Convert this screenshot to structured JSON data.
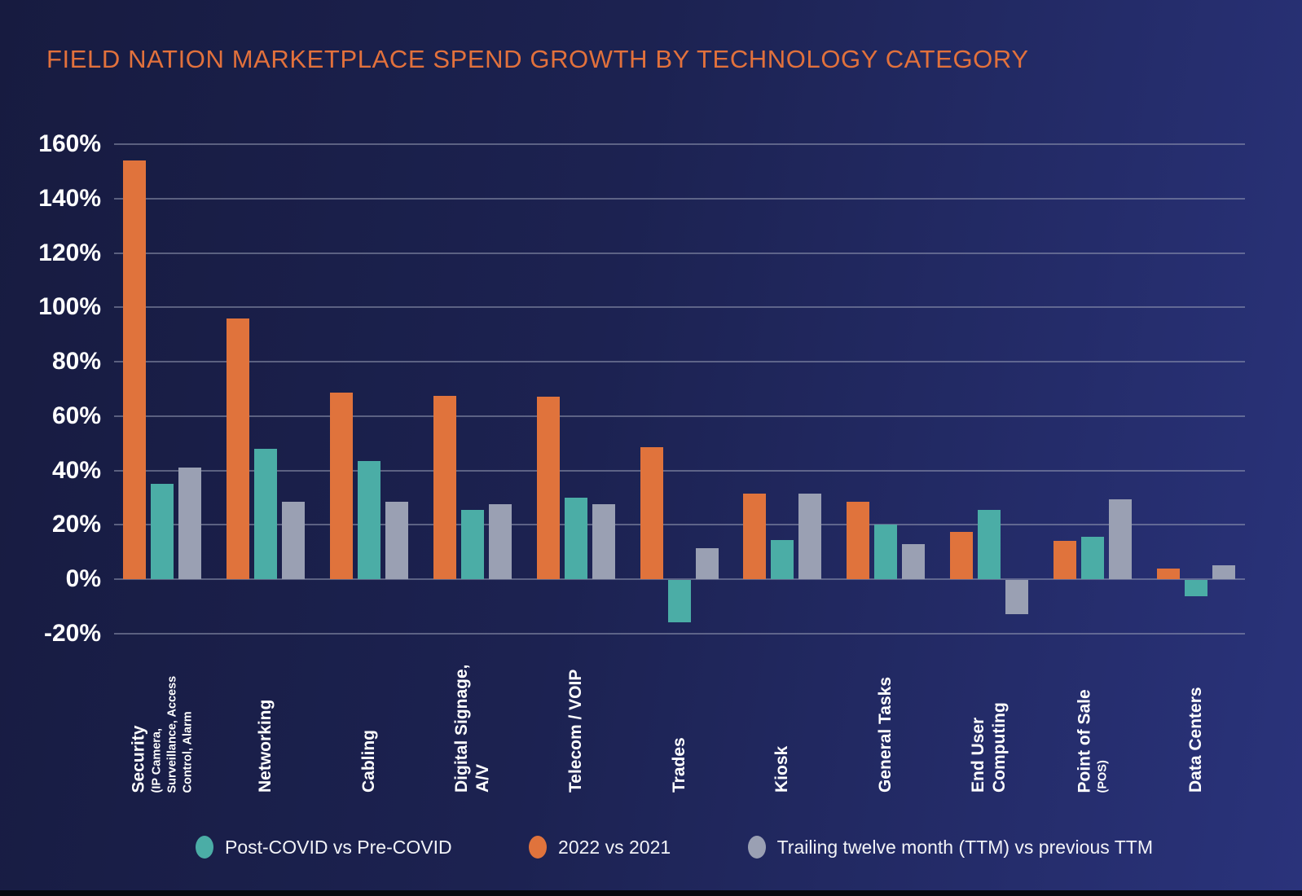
{
  "chart_data": {
    "type": "bar",
    "title": "FIELD NATION MARKETPLACE SPEND GROWTH BY TECHNOLOGY CATEGORY",
    "title_color": "#e2713c",
    "ylabel": "",
    "xlabel": "",
    "y_axis": {
      "min": -20,
      "max": 160,
      "step": 20,
      "unit": "%",
      "grid": true,
      "tick_labels": [
        "160%",
        "140%",
        "120%",
        "100%",
        "80%",
        "60%",
        "40%",
        "20%",
        "0%",
        "-20%"
      ]
    },
    "categories": [
      {
        "lines": [
          "Security"
        ],
        "sub_lines": [
          "(IP Camera,",
          "Surveillance, Access",
          "Control, Alarm"
        ]
      },
      {
        "lines": [
          "Networking"
        ],
        "sub_lines": []
      },
      {
        "lines": [
          "Cabling"
        ],
        "sub_lines": []
      },
      {
        "lines": [
          "Digital Signage,",
          "A/V"
        ],
        "sub_lines": []
      },
      {
        "lines": [
          "Telecom / VOIP"
        ],
        "sub_lines": []
      },
      {
        "lines": [
          "Trades"
        ],
        "sub_lines": []
      },
      {
        "lines": [
          "Kiosk"
        ],
        "sub_lines": []
      },
      {
        "lines": [
          "General Tasks"
        ],
        "sub_lines": []
      },
      {
        "lines": [
          "End User",
          "Computing"
        ],
        "sub_lines": []
      },
      {
        "lines": [
          "Point of Sale"
        ],
        "sub_lines": [
          "(POS)"
        ]
      },
      {
        "lines": [
          "Data Centers"
        ],
        "sub_lines": []
      }
    ],
    "series": [
      {
        "name": "2022 vs 2021",
        "color": "#e0733c",
        "values": [
          154,
          96,
          68.5,
          67.5,
          67,
          48.5,
          31.5,
          28.5,
          17.5,
          14,
          4
        ]
      },
      {
        "name": "Post-COVID vs Pre-COVID",
        "color": "#4bada6",
        "values": [
          35,
          48,
          43.5,
          25.5,
          30,
          -15.5,
          14.5,
          20,
          25.5,
          15.5,
          -6
        ]
      },
      {
        "name": "Trailing twelve month (TTM) vs previous TTM",
        "color": "#9aa0b3",
        "values": [
          41,
          28.5,
          28.5,
          27.5,
          27.5,
          11.5,
          31.5,
          13,
          -12.5,
          29.5,
          5
        ]
      }
    ],
    "legend": [
      {
        "label": "Post-COVID vs Pre-COVID",
        "color": "#4bada6"
      },
      {
        "label": "2022 vs 2021",
        "color": "#e0733c"
      },
      {
        "label": "Trailing twelve month (TTM) vs previous TTM",
        "color": "#9aa0b3"
      }
    ],
    "legend_position": "bottom"
  }
}
